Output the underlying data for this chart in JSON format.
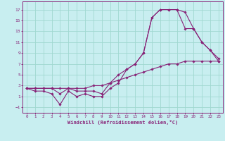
{
  "xlabel": "Windchill (Refroidissement éolien,°C)",
  "background_color": "#c8eef0",
  "grid_color": "#a0d8d0",
  "line_color": "#882277",
  "x_ticks": [
    0,
    1,
    2,
    3,
    4,
    5,
    6,
    7,
    8,
    9,
    10,
    11,
    12,
    13,
    14,
    15,
    16,
    17,
    18,
    19,
    20,
    21,
    22,
    23
  ],
  "y_ticks": [
    -1,
    1,
    3,
    5,
    7,
    9,
    11,
    13,
    15,
    17
  ],
  "xlim": [
    -0.5,
    23.5
  ],
  "ylim": [
    -2.0,
    18.5
  ],
  "line1_x": [
    0,
    1,
    2,
    3,
    4,
    5,
    6,
    7,
    8,
    9,
    10,
    11,
    12,
    13,
    14,
    15,
    16,
    17,
    18,
    19,
    20,
    21,
    22,
    23
  ],
  "line1_y": [
    2.5,
    2.5,
    2.5,
    2.5,
    2.5,
    2.5,
    2.5,
    2.5,
    3.0,
    3.0,
    3.5,
    4.0,
    4.5,
    5.0,
    5.5,
    6.0,
    6.5,
    7.0,
    7.0,
    7.5,
    7.5,
    7.5,
    7.5,
    7.5
  ],
  "line2_x": [
    0,
    1,
    2,
    3,
    4,
    5,
    6,
    7,
    8,
    9,
    10,
    11,
    12,
    13,
    14,
    15,
    16,
    17,
    18,
    19,
    20,
    21,
    22,
    23
  ],
  "line2_y": [
    2.5,
    2.0,
    2.0,
    1.5,
    -0.5,
    2.0,
    1.0,
    1.5,
    1.0,
    1.0,
    2.5,
    3.5,
    6.0,
    7.0,
    9.0,
    15.5,
    17.0,
    17.0,
    17.0,
    16.5,
    13.5,
    11.0,
    9.5,
    8.0
  ],
  "line3_x": [
    0,
    1,
    2,
    3,
    4,
    5,
    6,
    7,
    8,
    9,
    10,
    11,
    12,
    13,
    14,
    15,
    16,
    17,
    18,
    19,
    20,
    21,
    22,
    23
  ],
  "line3_y": [
    2.5,
    2.5,
    2.5,
    2.5,
    1.5,
    2.5,
    2.0,
    2.0,
    2.0,
    1.5,
    3.5,
    5.0,
    6.0,
    7.0,
    9.0,
    15.5,
    17.0,
    17.0,
    17.0,
    13.5,
    13.5,
    11.0,
    9.5,
    7.5
  ]
}
